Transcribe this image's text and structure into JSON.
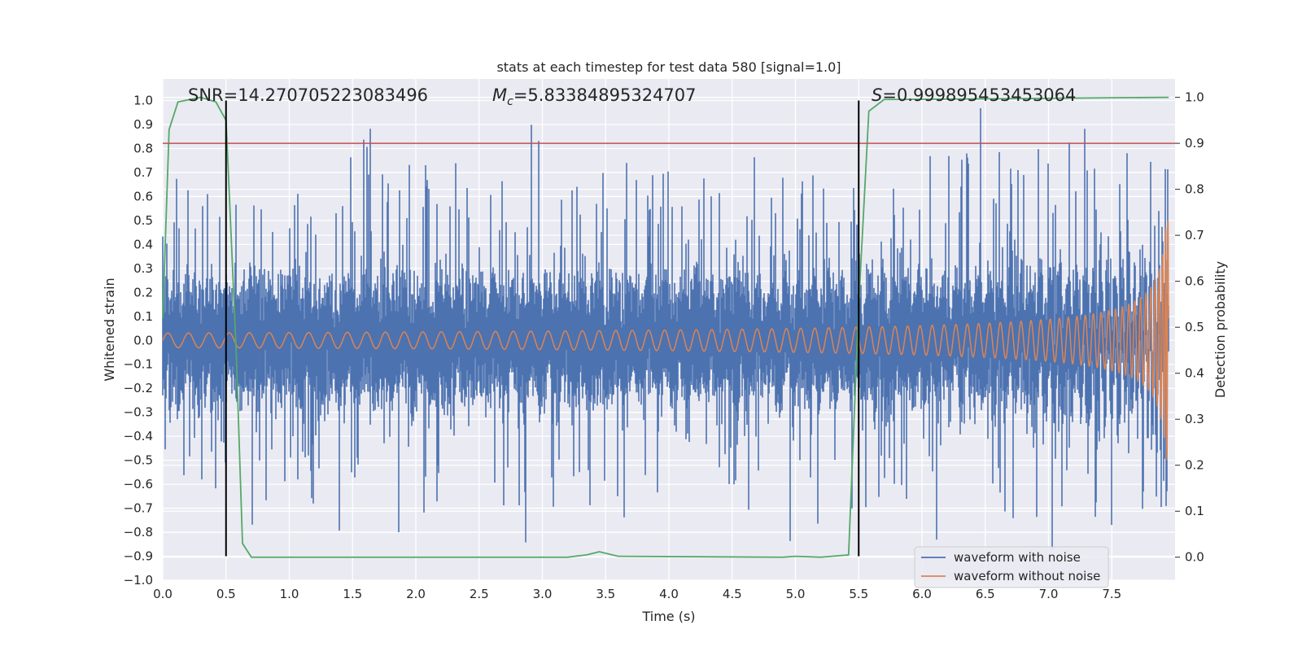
{
  "chart_data": {
    "type": "line",
    "title": "stats at each timestep for test data 580 [signal=1.0]",
    "xlabel": "Time (s)",
    "ylabel": "Whitened strain",
    "ylabel_right": "Detection probability",
    "xlim": [
      0.0,
      8.0
    ],
    "ylim": [
      -1.0,
      1.09
    ],
    "ylim_right": [
      -0.05,
      1.04
    ],
    "x_ticks": [
      "0.0",
      "0.5",
      "1.0",
      "1.5",
      "2.0",
      "2.5",
      "3.0",
      "3.5",
      "4.0",
      "4.5",
      "5.0",
      "5.5",
      "6.0",
      "6.5",
      "7.0",
      "7.5"
    ],
    "y_ticks": [
      "1.0",
      "0.9",
      "0.8",
      "0.7",
      "0.6",
      "0.5",
      "0.4",
      "0.3",
      "0.2",
      "0.1",
      "0.0",
      "−0.1",
      "−0.2",
      "−0.3",
      "−0.4",
      "−0.5",
      "−0.6",
      "−0.7",
      "−0.8",
      "−0.9",
      "−1.0"
    ],
    "y_ticks_right": [
      "1.0",
      "0.9",
      "0.8",
      "0.7",
      "0.6",
      "0.5",
      "0.4",
      "0.3",
      "0.2",
      "0.1",
      "0.0"
    ],
    "annotations": {
      "snr": "SNR=14.270705223083496",
      "mc_symbol": "M",
      "mc_sub": "c",
      "mc_value": "=5.83384895324707",
      "s_symbol": "S",
      "s_value": "=0.999895453453064"
    },
    "threshold_right": 0.9,
    "vertical_lines_x": [
      0.5,
      5.5
    ],
    "vertical_lines_y_range": [
      -0.9,
      1.0
    ],
    "series": [
      {
        "name": "waveform with noise",
        "color": "#4c72b0",
        "description": "noisy whitened strain, envelope approx ±0.4 with spikes up to 1.0 and down to -0.87",
        "duration_s": 7.95
      },
      {
        "name": "waveform without noise",
        "color": "#dd8452",
        "description": "chirp signal, amplitude ~0.03 at t=0 growing to ~0.5 at merger near t=7.95",
        "duration_s": 7.95
      },
      {
        "name": "detection probability",
        "color": "#55a868",
        "axis": "right",
        "x": [
          0.0,
          0.05,
          0.12,
          0.3,
          0.42,
          0.5,
          0.58,
          0.63,
          0.7,
          3.2,
          3.35,
          3.45,
          3.6,
          4.9,
          5.0,
          5.2,
          5.42,
          5.5,
          5.58,
          5.7,
          7.95
        ],
        "y": [
          0.52,
          0.93,
          0.99,
          1.0,
          0.99,
          0.95,
          0.45,
          0.03,
          0.0,
          0.0,
          0.005,
          0.012,
          0.002,
          0.0,
          0.002,
          0.0,
          0.005,
          0.55,
          0.97,
          0.995,
          1.0
        ]
      }
    ],
    "legend": {
      "position": "lower-right",
      "entries": [
        {
          "label": "waveform with noise",
          "color": "#4c72b0"
        },
        {
          "label": "waveform without noise",
          "color": "#dd8452"
        }
      ]
    },
    "threshold_color": "#c44e52",
    "vline_color": "#000000",
    "background": "#eaeaf2",
    "grid": true
  }
}
